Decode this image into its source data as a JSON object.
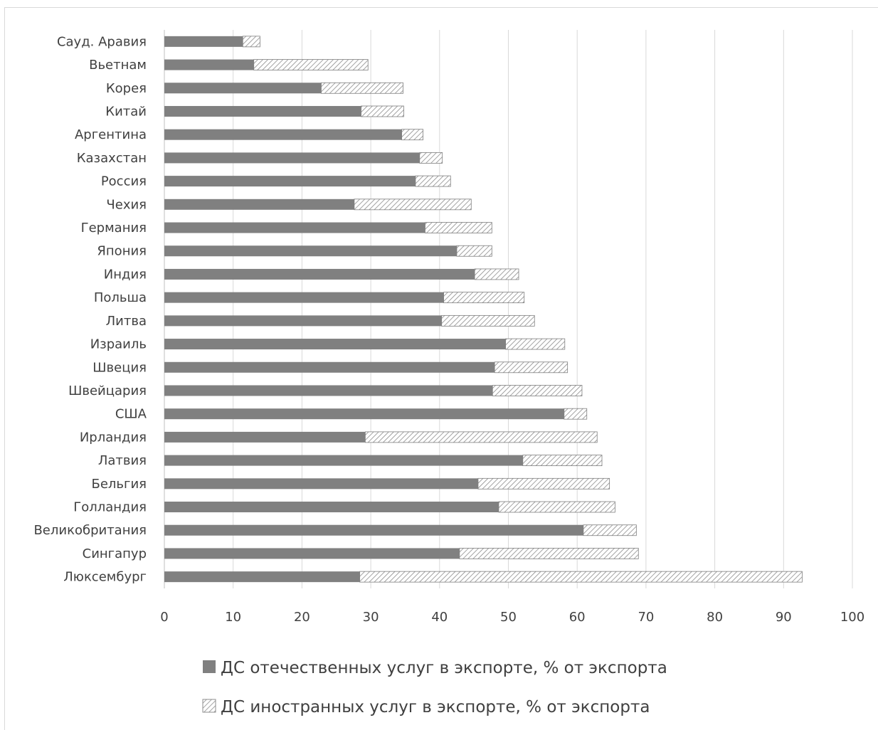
{
  "chart_data": {
    "type": "bar",
    "orientation": "horizontal",
    "stacked": true,
    "categories": [
      "Саyд. Аравия",
      "Вьетнам",
      "Корея",
      "Китай",
      "Аргентина",
      "Казахстан",
      "Россия",
      "Чехия",
      "Германия",
      "Япония",
      "Индия",
      "Польша",
      "Литва",
      "Израиль",
      "Швеция",
      "Швейцария",
      "США",
      "Ирландия",
      "Латвия",
      "Бельгия",
      "Голландия",
      "Великобритания",
      "Сингапур",
      "Люксембург"
    ],
    "series": [
      {
        "name": "ДС отечественных услуг в экспорте, % от экспорта",
        "color": "#808080",
        "pattern": "solid",
        "values": [
          11.4,
          13,
          22.8,
          28.6,
          34.5,
          37.1,
          36.5,
          27.6,
          37.9,
          42.5,
          45.1,
          40.6,
          40.3,
          49.6,
          48,
          47.7,
          58.1,
          29.2,
          52.1,
          45.6,
          48.6,
          60.9,
          42.9,
          28.4
        ]
      },
      {
        "name": "ДС иностранных услуг в экспорте, % от экспорта",
        "color": "#bfbfbf",
        "pattern": "diagonal-hatch",
        "values": [
          2.5,
          16.6,
          11.9,
          6.2,
          3.1,
          3.3,
          5.1,
          17,
          9.7,
          5.1,
          6.4,
          11.7,
          13.5,
          8.6,
          10.6,
          13,
          3.3,
          33.7,
          11.5,
          19.1,
          16.9,
          7.7,
          26,
          64.3
        ]
      }
    ],
    "x_ticks": [
      "0",
      "10",
      "20",
      "30",
      "40",
      "50",
      "60",
      "70",
      "80",
      "90",
      "100"
    ],
    "xlim": [
      0,
      100
    ],
    "grid": "vertical",
    "legend_position": "bottom"
  }
}
